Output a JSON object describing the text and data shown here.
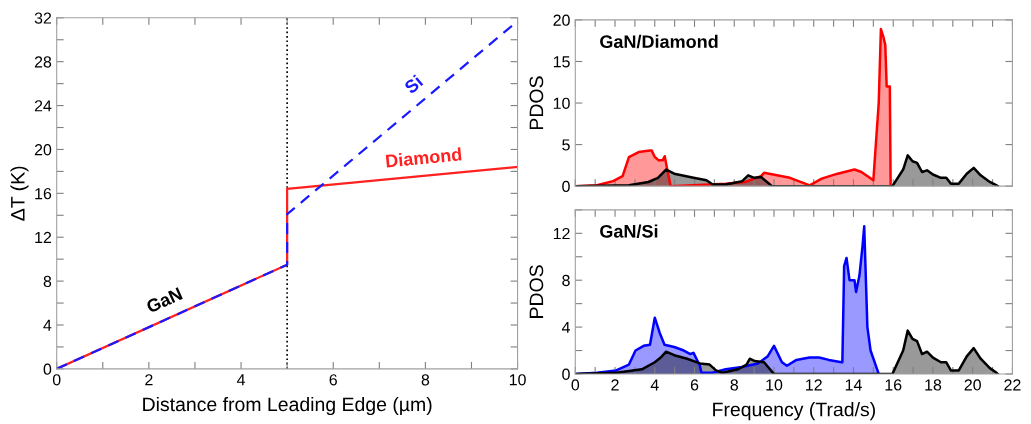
{
  "chart_data": [
    {
      "type": "line",
      "xlabel": "Distance from Leading Edge (µm)",
      "ylabel": "ΔT (K)",
      "xlim": [
        0,
        10
      ],
      "ylim": [
        0,
        32
      ],
      "xticks": [
        0,
        {
          "value": 1,
          "label": null
        },
        2,
        {
          "value": 3,
          "label": null
        },
        4,
        {
          "value": 5,
          "label": null
        },
        6,
        {
          "value": 7,
          "label": null
        },
        8,
        {
          "value": 9,
          "label": null
        },
        10
      ],
      "yticks": [
        0,
        {
          "value": 2,
          "label": null
        },
        4,
        {
          "value": 6,
          "label": null
        },
        8,
        {
          "value": 10,
          "label": null
        },
        12,
        {
          "value": 14,
          "label": null
        },
        16,
        {
          "value": 18,
          "label": null
        },
        20,
        {
          "value": 22,
          "label": null
        },
        24,
        {
          "value": 26,
          "label": null
        },
        28,
        {
          "value": 30,
          "label": null
        },
        32
      ],
      "series": [
        {
          "name": "Diamond",
          "color": "#ff2020",
          "line_style": "solid",
          "x": [
            0,
            5,
            5,
            10
          ],
          "values": [
            0,
            9.5,
            16.4,
            18.4
          ]
        },
        {
          "name": "Si",
          "color": "#1a1aff",
          "line_style": "dashed",
          "x": [
            0,
            5,
            5,
            10
          ],
          "values": [
            0,
            9.5,
            14.1,
            31.7
          ]
        }
      ],
      "ref_lines": [
        {
          "axis": "x",
          "value": 5,
          "color": "#000000",
          "line_style": "dotted"
        }
      ],
      "annotations": [
        {
          "text": "GaN",
          "x": 2.5,
          "y": 4.75
        }
      ],
      "grid": false,
      "legend": false,
      "marker": "none"
    },
    {
      "type": "area",
      "ylabel": "PDOS",
      "xlim": [
        0,
        22
      ],
      "ylim": [
        0,
        20
      ],
      "xticks": [
        0,
        {
          "value": 1,
          "label": null
        },
        2,
        {
          "value": 3,
          "label": null
        },
        4,
        {
          "value": 5,
          "label": null
        },
        6,
        {
          "value": 7,
          "label": null
        },
        8,
        {
          "value": 9,
          "label": null
        },
        10,
        {
          "value": 11,
          "label": null
        },
        12,
        {
          "value": 13,
          "label": null
        },
        14,
        {
          "value": 15,
          "label": null
        },
        16,
        {
          "value": 17,
          "label": null
        },
        18,
        {
          "value": 19,
          "label": null
        },
        20,
        {
          "value": 21,
          "label": null
        },
        22
      ],
      "yticks": [
        0,
        5,
        10,
        15,
        20
      ],
      "tick_labels": "y",
      "series": [
        {
          "color": "#ff0000",
          "x": [
            0,
            1.09,
            1.9,
            2.38,
            2.7,
            3.19,
            3.76,
            3.84,
            4.0,
            4.2,
            4.4,
            4.5,
            4.62,
            4.8,
            6.76,
            7.57,
            8.54,
            9.35,
            9.5,
            10.8,
            11.8,
            12.4,
            13.2,
            14.05,
            14.4,
            15.0,
            15.27,
            15.38,
            15.5,
            15.6,
            15.67,
            15.83,
            15.87
          ],
          "values": [
            0,
            0.1,
            0.6,
            1.2,
            3.5,
            4.1,
            4.3,
            4.3,
            3.5,
            3.1,
            3.1,
            3.6,
            2.1,
            0,
            0.2,
            0.3,
            0.5,
            1.2,
            1.6,
            1.0,
            0.1,
            0.9,
            1.5,
            2.0,
            1.7,
            0.7,
            10,
            18.9,
            18,
            17,
            12,
            12,
            0
          ]
        },
        {
          "color": "#000000",
          "x": [
            0,
            2.7,
            3.68,
            4.16,
            4.57,
            4.98,
            5.95,
            6.6,
            6.92,
            7.57,
            8.4,
            8.7,
            9.0,
            9.35,
            9.9,
            15.96,
            16.5,
            16.73,
            16.97,
            17.2,
            17.45,
            17.7,
            18.0,
            18.4,
            18.67,
            18.9,
            19.3,
            19.7,
            20.05,
            20.4,
            20.86,
            21.2,
            21.26
          ],
          "values": [
            0,
            0.1,
            0.5,
            1.0,
            2.0,
            1.5,
            1.0,
            0.7,
            0.2,
            0.2,
            0.6,
            1.3,
            1.0,
            1.1,
            0,
            0,
            2.0,
            3.7,
            3.0,
            2.8,
            1.7,
            1.9,
            1.4,
            1.0,
            1.0,
            0.3,
            0.3,
            1.5,
            2.2,
            1.3,
            0.5,
            0.1,
            0
          ]
        }
      ],
      "annotations": [
        "GaN/Diamond"
      ],
      "grid": false,
      "legend": false
    },
    {
      "type": "area",
      "xlabel": "Frequency (Trad/s)",
      "ylabel": "PDOS",
      "xlim": [
        0,
        22
      ],
      "ylim": [
        0,
        14
      ],
      "xticks": [
        0,
        {
          "value": 1,
          "label": null
        },
        2,
        {
          "value": 3,
          "label": null
        },
        4,
        {
          "value": 5,
          "label": null
        },
        6,
        {
          "value": 7,
          "label": null
        },
        8,
        {
          "value": 9,
          "label": null
        },
        10,
        {
          "value": 11,
          "label": null
        },
        12,
        {
          "value": 13,
          "label": null
        },
        14,
        {
          "value": 15,
          "label": null
        },
        16,
        {
          "value": 17,
          "label": null
        },
        18,
        {
          "value": 19,
          "label": null
        },
        20,
        {
          "value": 21,
          "label": null
        },
        22
      ],
      "yticks": [
        0,
        {
          "value": 2,
          "label": null
        },
        4,
        {
          "value": 6,
          "label": null
        },
        8,
        {
          "value": 10,
          "label": null
        },
        12,
        {
          "value": 14,
          "label": null
        }
      ],
      "series": [
        {
          "color": "#0000ff",
          "x": [
            0,
            1.09,
            2.06,
            2.7,
            3.03,
            3.44,
            3.76,
            4.0,
            4.25,
            4.49,
            4.98,
            5.46,
            5.79,
            5.95,
            6.27,
            6.35,
            6.9,
            7.57,
            8.38,
            9.19,
            9.68,
            10.0,
            10.4,
            10.65,
            11.13,
            11.78,
            12.27,
            12.76,
            13.4,
            13.44,
            13.53,
            13.65,
            13.8,
            14.05,
            14.13,
            14.3,
            14.46,
            14.54,
            14.7,
            14.86,
            15.27
          ],
          "values": [
            0,
            0.1,
            0.3,
            0.8,
            2.0,
            2.4,
            2.5,
            4.8,
            3.5,
            2.5,
            2.3,
            2.0,
            1.7,
            1.8,
            0.7,
            0.1,
            0.1,
            0.4,
            0.6,
            0.9,
            1.5,
            2.4,
            1.0,
            0.7,
            1.2,
            1.4,
            1.4,
            1.2,
            1.0,
            1.0,
            9.2,
            9.9,
            8.0,
            8.0,
            7.0,
            8.4,
            11,
            12.6,
            4.0,
            2.0,
            0
          ]
        },
        {
          "color": "#000000",
          "x": [
            0,
            2.06,
            3.35,
            4.0,
            4.3,
            4.57,
            4.98,
            5.63,
            6.27,
            6.76,
            7.08,
            7.4,
            8.2,
            8.62,
            8.78,
            9.03,
            9.5,
            10.0,
            15.96,
            16.5,
            16.73,
            16.97,
            17.2,
            17.45,
            17.7,
            18.0,
            18.4,
            18.67,
            18.9,
            19.3,
            19.7,
            20.05,
            20.4,
            20.86,
            21.2,
            21.26
          ],
          "values": [
            0,
            0.1,
            0.4,
            1.0,
            1.4,
            1.9,
            1.6,
            1.3,
            0.9,
            0.8,
            0.3,
            0.1,
            0.4,
            0.8,
            1.3,
            1.1,
            1.0,
            0,
            0,
            2.0,
            3.7,
            3.0,
            2.8,
            1.7,
            1.9,
            1.4,
            1.0,
            1.0,
            0.3,
            0.3,
            1.5,
            2.2,
            1.3,
            0.5,
            0.1,
            0
          ]
        }
      ],
      "annotations": [
        "GaN/Si"
      ],
      "grid": false,
      "legend": false
    }
  ]
}
